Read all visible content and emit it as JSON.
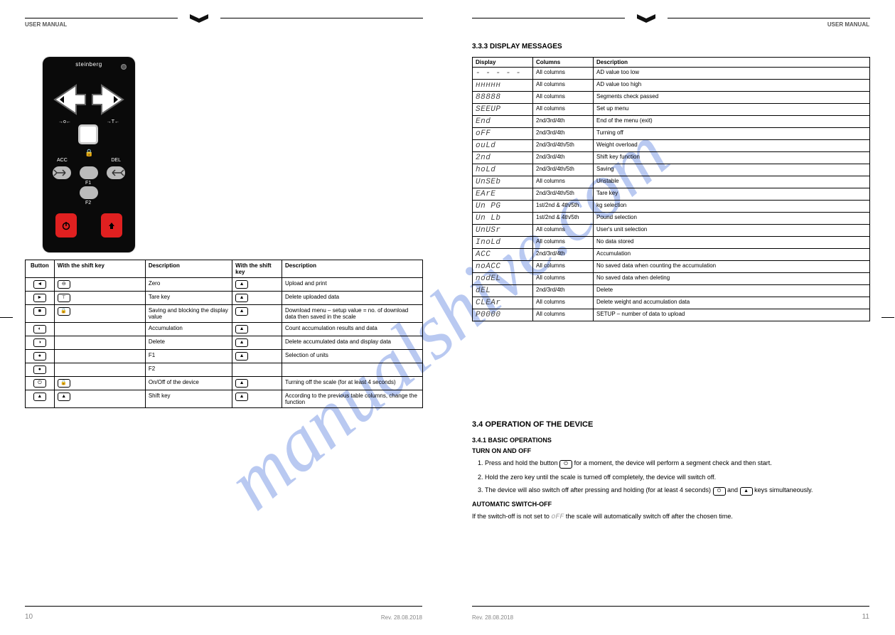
{
  "header_title": "USER MANUAL",
  "page_left_num": "10",
  "page_right_num": "11",
  "rev_text": "Rev. 28.08.2018",
  "watermark": "manualshive.com",
  "remote": {
    "brand": "steinberg",
    "acc": "ACC",
    "del": "DEL",
    "f1": "F1",
    "f2": "F2"
  },
  "btn_table": {
    "h_button": "Button",
    "h_shift": "With the shift key",
    "h_desc": "Description",
    "h_shift2": "With the shift key",
    "h_desc2": "Description",
    "rows": [
      {
        "icon": "◄",
        "shift": "⊖",
        "desc": "Zero",
        "shift2": "▲",
        "desc2": "Upload and print"
      },
      {
        "icon": "►",
        "shift": "⊤",
        "desc": "Tare key",
        "shift2": "▲",
        "desc2": "Delete uploaded data"
      },
      {
        "icon": "■",
        "shift": "🔒",
        "desc": "Saving and blocking the display value",
        "shift2": "▲",
        "desc2": "Download menu – setup value = no. of download data then saved in the scale"
      },
      {
        "icon": "◐",
        "shift": "",
        "desc": "Accumulation",
        "shift2": "▲",
        "desc2": "Count accumulation results and data"
      },
      {
        "icon": "◑",
        "shift": "",
        "desc": "Delete",
        "shift2": "▲",
        "desc2": "Delete accumulated data and display data"
      },
      {
        "icon": "●",
        "shift": "",
        "desc": "F1",
        "shift2": "▲",
        "desc2": "Selection of units"
      },
      {
        "icon": "●",
        "shift": "",
        "desc": "F2",
        "shift2": "",
        "desc2": ""
      },
      {
        "icon": "⏻",
        "shift": "🔒",
        "desc": "On/Off of the device",
        "shift2": "▲",
        "desc2": "Turning off the scale (for at least 4 seconds)"
      },
      {
        "icon": "▲",
        "shift": "▲",
        "desc": "Shift key",
        "shift2": "▲",
        "desc2": "According to the previous table columns, change the function"
      }
    ]
  },
  "display_table": {
    "h_display": "Display",
    "h_cols": "Columns",
    "h_desc": "Description",
    "rows": [
      {
        "d": "- - - - -",
        "c": "All columns",
        "desc": "AD value too low"
      },
      {
        "d": "ннннн",
        "c": "All columns",
        "desc": "AD value too high"
      },
      {
        "d": "88888",
        "c": "All columns",
        "desc": "Segments check passed"
      },
      {
        "d": "SEEUP",
        "c": "All columns",
        "desc": "Set up menu"
      },
      {
        "d": "End",
        "c": "2nd/3rd/4th",
        "desc": "End of the menu (exit)"
      },
      {
        "d": "oFF",
        "c": "2nd/3rd/4th",
        "desc": "Turning off"
      },
      {
        "d": "ouLd",
        "c": "2nd/3rd/4th/5th",
        "desc": "Weight overload"
      },
      {
        "d": "2nd",
        "c": "2nd/3rd/4th",
        "desc": "Shift key function"
      },
      {
        "d": "hoLd",
        "c": "2nd/3rd/4th/5th",
        "desc": "Saving"
      },
      {
        "d": "UnSEb",
        "c": "All columns",
        "desc": "Unstable"
      },
      {
        "d": "EArE",
        "c": "2nd/3rd/4th/5th",
        "desc": "Tare key"
      },
      {
        "d": "Un PG",
        "c": "1st/2nd & 4th/5th",
        "desc": "kg selection"
      },
      {
        "d": "Un Lb",
        "c": "1st/2nd & 4th/5th",
        "desc": "Pound selection"
      },
      {
        "d": "UnUSr",
        "c": "All columns",
        "desc": "User's unit selection"
      },
      {
        "d": "InoLd",
        "c": "All columns",
        "desc": "No data stored"
      },
      {
        "d": "ACC",
        "c": "2nd/3rd/4th",
        "desc": "Accumulation"
      },
      {
        "d": "noACC",
        "c": "All columns",
        "desc": "No saved data when counting the accumulation"
      },
      {
        "d": "nodEL",
        "c": "All columns",
        "desc": "No saved data when deleting"
      },
      {
        "d": "dEL",
        "c": "2nd/3rd/4th",
        "desc": "Delete"
      },
      {
        "d": "CLEAr",
        "c": "All columns",
        "desc": "Delete weight and accumulation data"
      },
      {
        "d": "P0000",
        "c": "All columns",
        "desc": "SETUP – number of data to upload"
      }
    ]
  },
  "operation": {
    "title": "3.4 OPERATION OF THE DEVICE",
    "sub1": "3.4.1 BASIC OPERATIONS",
    "h_on": "TURN ON AND OFF",
    "on_p1_a": "Press and hold the button ",
    "on_p1_b": " for a moment, the device will perform a segment check and then start.",
    "on_p2": "Hold the zero key until the scale is turned off completely, the device will switch off.",
    "on_p3_a": "The device will also switch off after pressing and holding (for at least 4 seconds) ",
    "on_p3_b": " and ",
    "on_p3_c": " keys simultaneously.",
    "h_auto": "AUTOMATIC SWITCH-OFF",
    "auto_p_a": "If the switch-off is not set to ",
    "auto_off": "oFF",
    "auto_p_b": " the scale will automatically switch off after the chosen time."
  }
}
